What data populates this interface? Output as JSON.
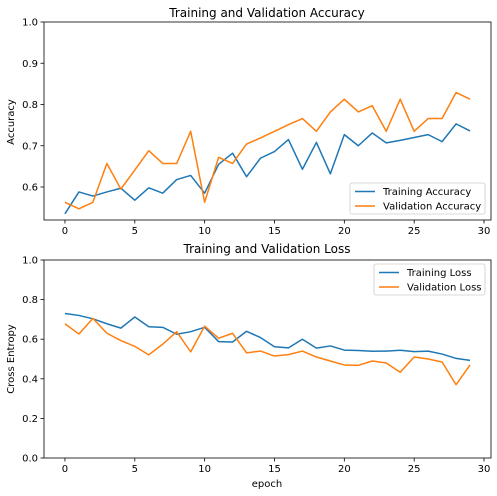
{
  "chart_data": [
    {
      "type": "line",
      "title": "Training and Validation Accuracy",
      "xlabel": "",
      "ylabel": "Accuracy",
      "xlim": [
        -1.5,
        30.5
      ],
      "ylim": [
        0.52,
        1.0
      ],
      "xticks": [
        0,
        5,
        10,
        15,
        20,
        25,
        30
      ],
      "yticks": [
        0.6,
        0.7,
        0.8,
        0.9,
        1.0
      ],
      "legend": "lower-right",
      "x": [
        0,
        1,
        2,
        3,
        4,
        5,
        6,
        7,
        8,
        9,
        10,
        11,
        12,
        13,
        14,
        15,
        16,
        17,
        18,
        19,
        20,
        21,
        22,
        23,
        24,
        25,
        26,
        27,
        28,
        29
      ],
      "series": [
        {
          "name": "Training Accuracy",
          "color": "#1f77b4",
          "values": [
            0.535,
            0.588,
            0.578,
            0.588,
            0.597,
            0.568,
            0.598,
            0.585,
            0.618,
            0.628,
            0.585,
            0.655,
            0.682,
            0.625,
            0.67,
            0.686,
            0.715,
            0.643,
            0.708,
            0.632,
            0.727,
            0.7,
            0.731,
            0.707,
            0.713,
            0.72,
            0.727,
            0.71,
            0.753,
            0.736
          ]
        },
        {
          "name": "Validation Accuracy",
          "color": "#ff7f0e",
          "values": [
            0.563,
            0.547,
            0.563,
            0.657,
            0.595,
            0.641,
            0.688,
            0.657,
            0.657,
            0.735,
            0.563,
            0.672,
            0.657,
            0.704,
            0.719,
            0.735,
            0.751,
            0.766,
            0.735,
            0.782,
            0.813,
            0.782,
            0.797,
            0.735,
            0.813,
            0.735,
            0.766,
            0.766,
            0.829,
            0.813
          ]
        }
      ]
    },
    {
      "type": "line",
      "title": "Training and Validation Loss",
      "xlabel": "epoch",
      "ylabel": "Cross Entropy",
      "xlim": [
        -1.5,
        30.5
      ],
      "ylim": [
        0.0,
        1.0
      ],
      "xticks": [
        0,
        5,
        10,
        15,
        20,
        25,
        30
      ],
      "yticks": [
        0.0,
        0.2,
        0.4,
        0.6,
        0.8,
        1.0
      ],
      "legend": "top-right",
      "x": [
        0,
        1,
        2,
        3,
        4,
        5,
        6,
        7,
        8,
        9,
        10,
        11,
        12,
        13,
        14,
        15,
        16,
        17,
        18,
        19,
        20,
        21,
        22,
        23,
        24,
        25,
        26,
        27,
        28,
        29
      ],
      "series": [
        {
          "name": "Training Loss",
          "color": "#1f77b4",
          "values": [
            0.73,
            0.72,
            0.703,
            0.678,
            0.656,
            0.712,
            0.663,
            0.66,
            0.625,
            0.638,
            0.66,
            0.588,
            0.586,
            0.64,
            0.608,
            0.562,
            0.556,
            0.6,
            0.555,
            0.566,
            0.545,
            0.543,
            0.539,
            0.54,
            0.544,
            0.537,
            0.54,
            0.525,
            0.503,
            0.493
          ]
        },
        {
          "name": "Validation Loss",
          "color": "#ff7f0e",
          "values": [
            0.678,
            0.626,
            0.705,
            0.63,
            0.593,
            0.564,
            0.521,
            0.575,
            0.638,
            0.536,
            0.666,
            0.605,
            0.63,
            0.531,
            0.54,
            0.515,
            0.522,
            0.54,
            0.51,
            0.49,
            0.47,
            0.468,
            0.49,
            0.48,
            0.433,
            0.51,
            0.5,
            0.485,
            0.37,
            0.47
          ]
        }
      ]
    }
  ]
}
